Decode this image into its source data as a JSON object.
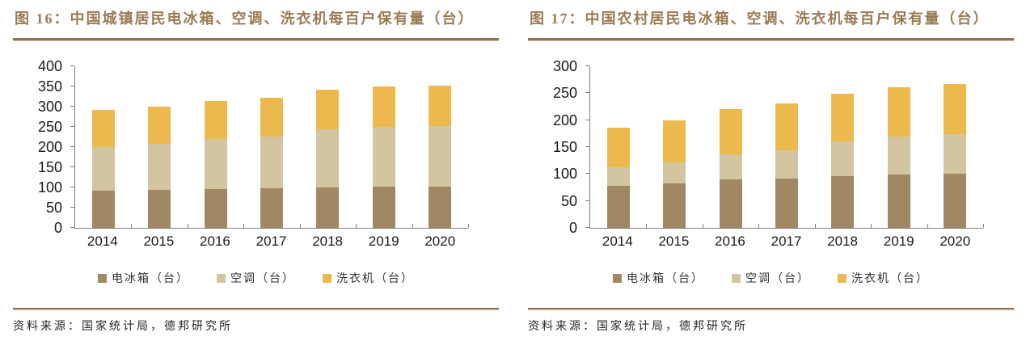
{
  "page": {
    "accent_rule_color": "#8c7350",
    "title_color": "#9a7b52"
  },
  "chart_data": [
    {
      "type": "bar",
      "stacked": true,
      "title_label": "图 16：",
      "title": "中国城镇居民电冰箱、空调、洗衣机每百户保有量（台）",
      "categories": [
        "2014",
        "2015",
        "2016",
        "2017",
        "2018",
        "2019",
        "2020"
      ],
      "series": [
        {
          "name": "电冰箱（台）",
          "color": "#a18864",
          "values": [
            92.6,
            94.0,
            96.4,
            98.0,
            100.9,
            102.5,
            101.8
          ]
        },
        {
          "name": "空调（台）",
          "color": "#d2c59f",
          "values": [
            107.4,
            114.6,
            123.7,
            128.6,
            142.9,
            148.3,
            149.6
          ]
        },
        {
          "name": "洗衣机（台）",
          "color": "#ecb94f",
          "values": [
            92.3,
            92.3,
            94.2,
            95.7,
            97.7,
            99.2,
            100.1
          ]
        }
      ],
      "ylim": [
        0,
        400
      ],
      "ytick_step": 50,
      "grid": false,
      "legend_position": "bottom",
      "source": "资料来源：国家统计局，德邦研究所"
    },
    {
      "type": "bar",
      "stacked": true,
      "title_label": "图 17：",
      "title": "中国农村居民电冰箱、空调、洗衣机每百户保有量（台）",
      "categories": [
        "2014",
        "2015",
        "2016",
        "2017",
        "2018",
        "2019",
        "2020"
      ],
      "series": [
        {
          "name": "电冰箱（台）",
          "color": "#a18864",
          "values": [
            77.6,
            82.6,
            89.5,
            91.7,
            95.9,
            98.6,
            100.5
          ]
        },
        {
          "name": "空调（台）",
          "color": "#d2c59f",
          "values": [
            34.2,
            38.8,
            47.6,
            52.6,
            65.2,
            71.3,
            73.8
          ]
        },
        {
          "name": "洗衣机（台）",
          "color": "#ecb94f",
          "values": [
            74.8,
            78.8,
            84.0,
            86.3,
            88.5,
            91.6,
            92.8
          ]
        }
      ],
      "ylim": [
        0,
        300
      ],
      "ytick_step": 50,
      "grid": false,
      "legend_position": "bottom",
      "source": "资料来源：国家统计局，德邦研究所"
    }
  ]
}
